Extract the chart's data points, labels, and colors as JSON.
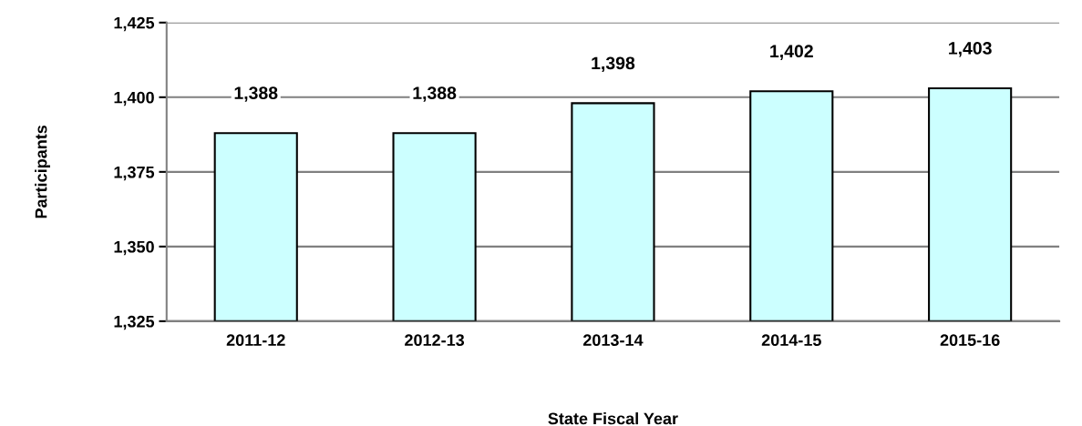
{
  "chart_data": {
    "type": "bar",
    "xlabel": "State Fiscal Year",
    "ylabel": "Participants",
    "categories": [
      "2011-12",
      "2012-13",
      "2013-14",
      "2014-15",
      "2015-16"
    ],
    "values": [
      1388,
      1388,
      1398,
      1402,
      1403
    ],
    "color": "#ccffff",
    "ylim": [
      1325,
      1425
    ],
    "yticks": [
      {
        "value": 1325,
        "label": "1,325"
      },
      {
        "value": 1350,
        "label": "1,350"
      },
      {
        "value": 1375,
        "label": "1,375"
      },
      {
        "value": 1400,
        "label": "1,400"
      },
      {
        "value": 1425,
        "label": "1,425"
      }
    ],
    "value_labels": [
      "1,388",
      "1,388",
      "1,398",
      "1,402",
      "1,403"
    ],
    "grid": "y",
    "legend": false
  }
}
